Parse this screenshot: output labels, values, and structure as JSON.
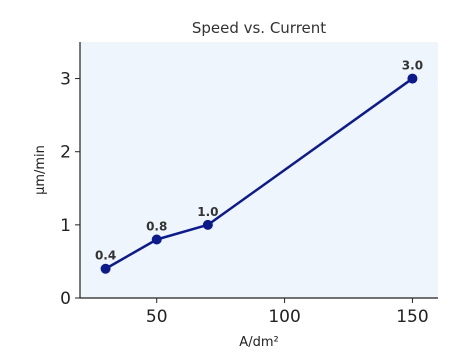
{
  "chart_data": {
    "type": "line",
    "title": "Speed vs. Current",
    "xlabel": "A/dm²",
    "ylabel": "µm/min",
    "xlim": [
      20,
      160
    ],
    "ylim": [
      0,
      3.5
    ],
    "x_ticks": [
      50,
      100,
      150
    ],
    "y_ticks": [
      0,
      1,
      2,
      3
    ],
    "x_tick_labels": [
      "50",
      "100",
      "150"
    ],
    "y_tick_labels": [
      "0",
      "1",
      "2",
      "3"
    ],
    "grid": false,
    "series": [
      {
        "x": [
          30,
          50,
          70,
          150
        ],
        "y": [
          0.4,
          0.8,
          1.0,
          3.0
        ],
        "labels": [
          "0.4",
          "0.8",
          "1.0",
          "3.0"
        ]
      }
    ],
    "colors": {
      "background": "#eef5fc",
      "line": "#0d1a8c",
      "marker": "#0d1a8c"
    }
  }
}
